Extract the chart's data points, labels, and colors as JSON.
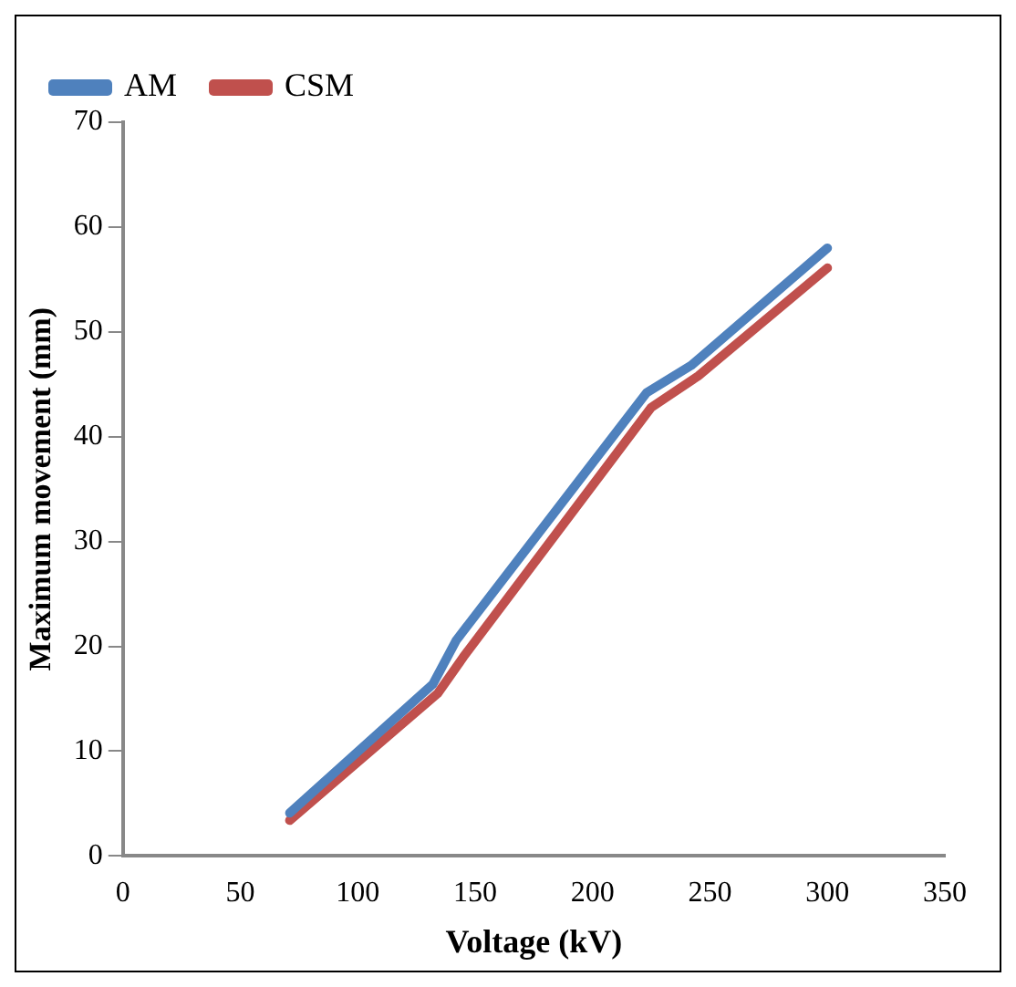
{
  "chart_data": {
    "type": "line",
    "xlabel": "Voltage (kV)",
    "ylabel": "Maximum movement (mm)",
    "xlim": [
      0,
      350
    ],
    "xticks": [
      0,
      50,
      100,
      150,
      200,
      250,
      300,
      350
    ],
    "ylim": [
      0,
      70
    ],
    "yticks": [
      0,
      10,
      20,
      30,
      40,
      50,
      60,
      70
    ],
    "grid": false,
    "legend": "top left",
    "marker": "none",
    "line_style": "solid",
    "series": [
      {
        "name": "AM",
        "color": "#4f81bd",
        "x": [
          71,
          132,
          142,
          223,
          242,
          300
        ],
        "values": [
          4.1,
          16.4,
          20.6,
          44.2,
          46.8,
          58
        ]
      },
      {
        "name": "CSM",
        "color": "#c0504d",
        "x": [
          71,
          134,
          145,
          225,
          245,
          300
        ],
        "values": [
          3.4,
          15.5,
          19,
          42.8,
          45.8,
          56.1
        ]
      }
    ]
  }
}
